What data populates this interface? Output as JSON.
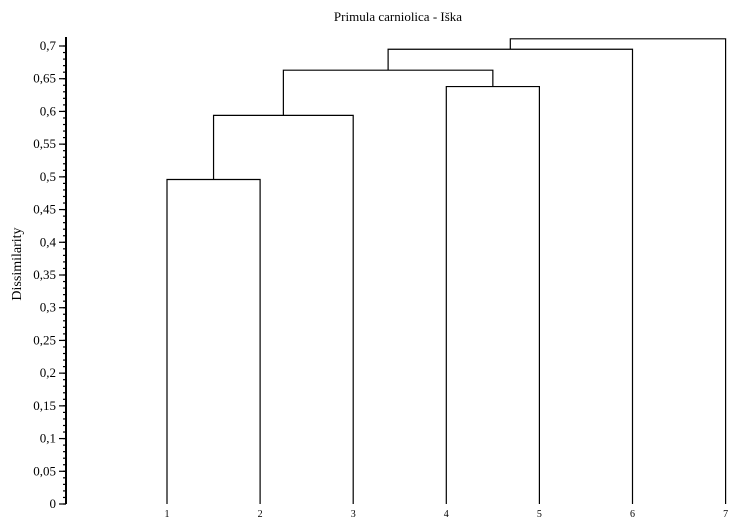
{
  "chart_data": {
    "type": "dendrogram",
    "title": "Primula carniolica - Iška",
    "ylabel": "Dissimilarity",
    "xlabel": "",
    "ylim": [
      0,
      0.7
    ],
    "grid": false,
    "leaves": [
      "1",
      "2",
      "3",
      "4",
      "5",
      "6",
      "7"
    ],
    "yticks": [
      "0",
      "0,05",
      "0,1",
      "0,15",
      "0,2",
      "0,25",
      "0,3",
      "0,35",
      "0,4",
      "0,45",
      "0,5",
      "0,55",
      "0,6",
      "0,65",
      "0,7"
    ],
    "merges": [
      {
        "left": "1",
        "right": "2",
        "height": 0.496
      },
      {
        "left": "1-2",
        "right": "3",
        "height": 0.594
      },
      {
        "left": "4",
        "right": "5",
        "height": 0.638
      },
      {
        "left": "1-2-3",
        "right": "4-5",
        "height": 0.663
      },
      {
        "left": "1-2-3-4-5",
        "right": "6",
        "height": 0.695
      },
      {
        "left": "1-2-3-4-5-6",
        "right": "7",
        "height": 0.711
      }
    ]
  }
}
